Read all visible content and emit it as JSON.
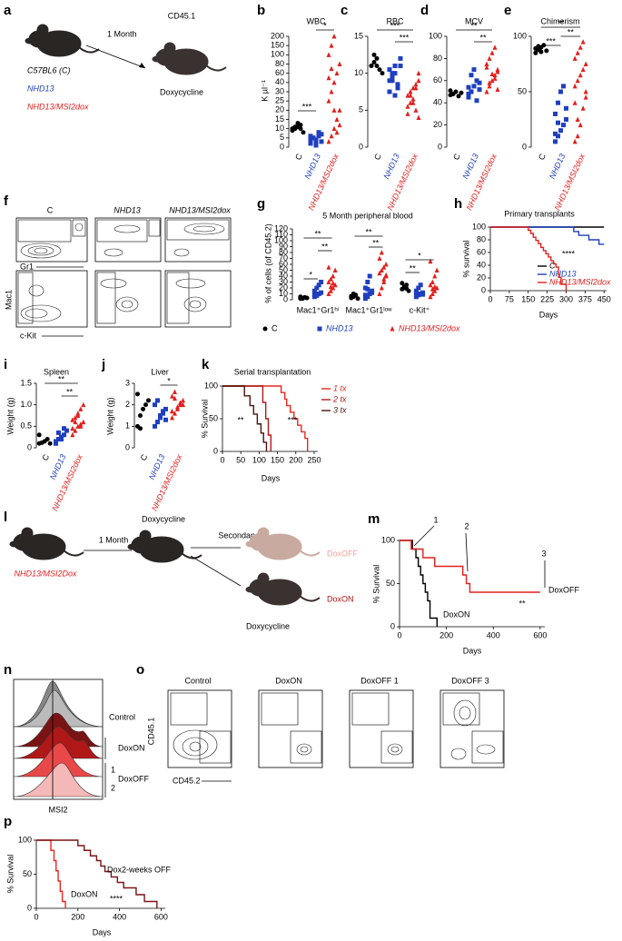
{
  "figure": {
    "a": {
      "label": "a",
      "interval": "1 Month",
      "recipient": "CD45.1",
      "strains": [
        "C57BL6 (C)",
        "NHD13",
        "NHD13/MSI2dox"
      ],
      "treatment": "Doxycycline"
    },
    "f": {
      "label": "f",
      "columns": [
        "C",
        "NHD13",
        "NHD13/MSI2dox"
      ],
      "axes": [
        "Gr1",
        "Mac1",
        "c-Kit"
      ]
    },
    "l": {
      "label": "l",
      "strain": "NHD13/MSI2Dox",
      "interval": "1 Month",
      "treatment": "Doxycycline",
      "step": "Secondary",
      "arms": [
        "DoxOFF",
        "DoxON"
      ],
      "arm_treatment": "Doxycycline"
    },
    "n": {
      "label": "n",
      "rows": [
        "Control",
        "DoxON",
        "DoxOFF"
      ],
      "replicates": [
        "1",
        "2"
      ],
      "xlabel": "MSI2"
    },
    "o": {
      "label": "o",
      "panels": [
        "Control",
        "DoxON",
        "DoxOFF 1",
        "DoxOFF 3"
      ],
      "ylabel": "CD45.1",
      "xlabel": "CD45.2"
    }
  },
  "chart_data": [
    {
      "type": "dot",
      "label": "b",
      "title": "WBC",
      "ylabel": "K µl⁻¹",
      "y_scale": "tick-spaced",
      "categories": [
        "C",
        "NHD13",
        "NHD13/MSI2dox"
      ],
      "colors": [
        "#000000",
        "#1f3fbf",
        "#e0201e"
      ],
      "markers": [
        "circle",
        "square",
        "triangle"
      ],
      "values": [
        [
          9,
          10,
          11,
          12,
          8,
          10,
          11,
          13,
          10
        ],
        [
          4,
          5,
          3,
          6,
          7,
          2,
          5,
          4,
          8,
          3,
          6,
          5,
          1
        ],
        [
          3,
          6,
          10,
          15,
          20,
          25,
          30,
          40,
          60,
          80,
          100,
          150,
          200,
          8,
          12,
          50,
          70,
          20
        ]
      ],
      "ylim": [
        0,
        200
      ],
      "yticks": [
        0,
        5,
        10,
        15,
        20,
        25,
        30,
        40,
        60,
        80,
        100,
        150,
        200
      ],
      "annotations": [
        "***",
        "*"
      ]
    },
    {
      "type": "dot",
      "label": "c",
      "title": "RBC",
      "categories": [
        "C",
        "NHD13",
        "NHD13/MSI2dox"
      ],
      "colors": [
        "#000000",
        "#1f3fbf",
        "#e0201e"
      ],
      "markers": [
        "circle",
        "square",
        "triangle"
      ],
      "values": [
        [
          11,
          11.5,
          12,
          10.5,
          10,
          11,
          12.5,
          11
        ],
        [
          9,
          10,
          11,
          8,
          12,
          7.5,
          9.5,
          10,
          8.5,
          11,
          10.5,
          9,
          7
        ],
        [
          7,
          6,
          8,
          5,
          9,
          4.5,
          7.5,
          6.5,
          8.5,
          10,
          5.5,
          7,
          6,
          8,
          4
        ]
      ],
      "ylim": [
        0,
        15
      ],
      "yticks": [
        0,
        5,
        10,
        15
      ],
      "annotations": [
        "***",
        "***"
      ]
    },
    {
      "type": "dot",
      "label": "d",
      "title": "MCV",
      "categories": [
        "C",
        "NHD13",
        "NHD13/MSI2dox"
      ],
      "colors": [
        "#000000",
        "#1f3fbf",
        "#e0201e"
      ],
      "markers": [
        "circle",
        "square",
        "triangle"
      ],
      "values": [
        [
          47,
          48,
          50,
          46,
          49,
          51,
          48
        ],
        [
          45,
          50,
          55,
          60,
          52,
          48,
          65,
          70,
          42,
          58,
          54
        ],
        [
          50,
          55,
          60,
          65,
          70,
          75,
          80,
          85,
          62,
          68,
          72,
          58,
          66,
          90,
          52
        ]
      ],
      "ylim": [
        0,
        100
      ],
      "yticks": [
        0,
        20,
        40,
        60,
        80,
        100
      ],
      "annotations": [
        "**",
        "**"
      ]
    },
    {
      "type": "dot",
      "label": "e",
      "title": "Chimerism",
      "categories": [
        "C",
        "NHD13",
        "NHD13/MSI2dox"
      ],
      "colors": [
        "#000000",
        "#1f3fbf",
        "#e0201e"
      ],
      "markers": [
        "circle",
        "square",
        "triangle"
      ],
      "values": [
        [
          85,
          88,
          90,
          92,
          87,
          89,
          91,
          86
        ],
        [
          5,
          10,
          15,
          20,
          25,
          30,
          40,
          50,
          55,
          35,
          12,
          22
        ],
        [
          5,
          10,
          20,
          35,
          45,
          55,
          60,
          65,
          70,
          75,
          80,
          85,
          90,
          95,
          50,
          40,
          25
        ]
      ],
      "ylim": [
        0,
        100
      ],
      "yticks": [
        0,
        50,
        100
      ],
      "annotations": [
        "**",
        "**",
        "***"
      ]
    },
    {
      "type": "grouped-dot",
      "label": "g",
      "title": "5 Month peripheral blood",
      "ylabel": "% of cells (of CD45.2)",
      "groups": [
        "Mac1⁺Gr1ʰⁱ",
        "Mac1⁺Gr1ˡᵒʷ",
        "c-Kit⁺"
      ],
      "series": [
        {
          "name": "C",
          "color": "#000000",
          "marker": "circle",
          "values": [
            [
              2,
              3,
              4,
              3,
              5,
              2
            ],
            [
              3,
              5,
              8,
              2,
              6,
              10
            ],
            [
              18,
              20,
              25,
              15,
              28,
              22,
              19
            ]
          ]
        },
        {
          "name": "NHD13",
          "color": "#1f3fbf",
          "marker": "square",
          "values": [
            [
              5,
              8,
              10,
              12,
              15,
              20,
              25,
              30,
              10,
              7
            ],
            [
              2,
              5,
              10,
              15,
              20,
              30,
              40,
              12,
              8,
              18
            ],
            [
              5,
              8,
              10,
              12,
              15,
              20,
              25,
              9,
              11
            ]
          ]
        },
        {
          "name": "NHD13/MSI2dox",
          "color": "#e0201e",
          "marker": "triangle",
          "values": [
            [
              10,
              15,
              20,
              25,
              30,
              35,
              40,
              50,
              55,
              22,
              28
            ],
            [
              10,
              20,
              30,
              40,
              45,
              50,
              55,
              60,
              70,
              80,
              35,
              42
            ],
            [
              5,
              10,
              15,
              20,
              25,
              30,
              40,
              50,
              65,
              18,
              22
            ]
          ]
        }
      ],
      "ylim": [
        0,
        120
      ],
      "yticks": [
        0,
        10,
        20,
        30,
        40,
        50,
        60,
        70,
        80,
        90,
        100,
        110,
        120
      ],
      "annotations": [
        "*",
        "**",
        "**",
        "**",
        "**",
        "**",
        "*"
      ]
    },
    {
      "type": "survival",
      "label": "h",
      "title": "Primary transplants",
      "ylabel": "% survival",
      "xlabel": "Days",
      "legend": true,
      "series": [
        {
          "name": "C",
          "color": "#000000",
          "x": [
            0,
            450
          ],
          "values": [
            100,
            100
          ]
        },
        {
          "name": "NHD13",
          "color": "#1f3fbf",
          "x": [
            0,
            330,
            350,
            390,
            410,
            430,
            450
          ],
          "values": [
            100,
            93,
            87,
            80,
            80,
            73,
            73
          ]
        },
        {
          "name": "NHD13/MSI2dox",
          "color": "#e0201e",
          "x": [
            0,
            150,
            160,
            170,
            180,
            190,
            200,
            210,
            220,
            230,
            240,
            250,
            260,
            270,
            280,
            300
          ],
          "values": [
            100,
            95,
            90,
            84,
            79,
            74,
            68,
            63,
            58,
            53,
            47,
            42,
            37,
            21,
            10,
            0
          ]
        }
      ],
      "xlim": [
        0,
        460
      ],
      "xticks": [
        0,
        75,
        150,
        225,
        300,
        375,
        450
      ],
      "ylim": [
        0,
        100
      ],
      "yticks": [
        0,
        20,
        40,
        60,
        80,
        100
      ],
      "annotations": [
        "****"
      ]
    },
    {
      "type": "dot",
      "label": "i",
      "title": "Spleen",
      "ylabel": "Weight (g)",
      "categories": [
        "C",
        "NHD13",
        "NHD13/MSI2dox"
      ],
      "colors": [
        "#000000",
        "#1f3fbf",
        "#e0201e"
      ],
      "markers": [
        "circle",
        "square",
        "triangle"
      ],
      "values": [
        [
          0.1,
          0.12,
          0.15,
          0.2,
          0.1,
          0.3
        ],
        [
          0.1,
          0.2,
          0.25,
          0.3,
          0.4,
          0.15,
          0.35,
          0.2,
          0.45
        ],
        [
          0.3,
          0.4,
          0.5,
          0.55,
          0.6,
          0.65,
          0.7,
          0.8,
          0.9,
          1.0,
          0.45,
          0.6,
          0.75,
          0.5
        ]
      ],
      "ylim": [
        0,
        1.5
      ],
      "yticks": [
        0,
        0.5,
        {
          "value": 1,
          "label": "1.0"
        },
        1.5
      ],
      "annotations": [
        "**",
        "**"
      ]
    },
    {
      "type": "dot",
      "label": "j",
      "title": "Liver",
      "ylabel": "Weight (g)",
      "categories": [
        "C",
        "NHD13",
        "NHD13/MSI2dox"
      ],
      "colors": [
        "#000000",
        "#1f3fbf",
        "#e0201e"
      ],
      "markers": [
        "circle",
        "square",
        "triangle"
      ],
      "values": [
        [
          1.0,
          1.5,
          1.8,
          2.0,
          2.2,
          2.5,
          0.9
        ],
        [
          1.0,
          1.2,
          1.4,
          1.6,
          1.8,
          2.0,
          2.2,
          1.5,
          1.7,
          1.3
        ],
        [
          1.4,
          1.6,
          1.8,
          2.0,
          2.2,
          2.4,
          2.6,
          1.9,
          2.1,
          2.0,
          1.7,
          2.3
        ]
      ],
      "ylim": [
        0,
        3
      ],
      "yticks": [
        0,
        1,
        2,
        3
      ],
      "annotations": [
        "*"
      ]
    },
    {
      "type": "survival",
      "label": "k",
      "title": "Serial transplantation",
      "ylabel": "% Survival",
      "xlabel": "Days",
      "legend": true,
      "series": [
        {
          "name": "1 tx",
          "color": "#e8281e",
          "x": [
            0,
            160,
            170,
            175,
            185,
            195,
            205,
            215,
            225,
            232
          ],
          "values": [
            100,
            90,
            80,
            70,
            60,
            50,
            40,
            30,
            20,
            0
          ]
        },
        {
          "name": "2 tx",
          "color": "#b01818",
          "x": [
            0,
            110,
            118,
            125,
            132
          ],
          "values": [
            100,
            75,
            50,
            25,
            0
          ]
        },
        {
          "name": "3 tx",
          "color": "#4a1410",
          "x": [
            0,
            60,
            75,
            85,
            95,
            105,
            112,
            120
          ],
          "values": [
            100,
            85,
            70,
            57,
            42,
            28,
            14,
            0
          ]
        }
      ],
      "xlim": [
        0,
        260
      ],
      "xticks": [
        0,
        50,
        100,
        150,
        200,
        250
      ],
      "ylim": [
        0,
        100
      ],
      "yticks": [
        0,
        50,
        100
      ],
      "annotations": [
        "**",
        "***"
      ]
    },
    {
      "type": "survival",
      "label": "m",
      "ylabel": "% Survival",
      "xlabel": "Days",
      "legend": false,
      "series": [
        {
          "name": "DoxON",
          "color": "#000000",
          "x": [
            0,
            55,
            70,
            80,
            90,
            100,
            110,
            120,
            130,
            160
          ],
          "values": [
            100,
            90,
            80,
            70,
            60,
            50,
            40,
            30,
            10,
            0
          ]
        },
        {
          "name": "DoxOFF",
          "color": "#e0201e",
          "x": [
            0,
            50,
            100,
            150,
            270,
            285,
            300,
            600
          ],
          "values": [
            100,
            90,
            80,
            70,
            60,
            50,
            40,
            40
          ]
        }
      ],
      "xlim": [
        0,
        620
      ],
      "xticks": [
        0,
        200,
        400,
        600
      ],
      "ylim": [
        0,
        100
      ],
      "yticks": [
        0,
        50,
        100
      ],
      "annotations": [
        "1",
        "2",
        "3",
        "**"
      ]
    },
    {
      "type": "survival",
      "label": "p",
      "ylabel": "% Survival",
      "xlabel": "Days",
      "legend": false,
      "series": [
        {
          "name": "DoxON",
          "color": "#e8281e",
          "x": [
            0,
            70,
            85,
            95,
            105,
            115,
            125,
            140
          ],
          "values": [
            100,
            85,
            70,
            55,
            40,
            25,
            10,
            0
          ]
        },
        {
          "name": "Dox2-weeks OFF",
          "color": "#7a1414",
          "x": [
            0,
            200,
            230,
            260,
            290,
            310,
            330,
            360,
            390,
            420,
            480,
            520,
            580
          ],
          "values": [
            100,
            92,
            85,
            77,
            70,
            62,
            54,
            46,
            38,
            30,
            20,
            10,
            0
          ]
        }
      ],
      "xlim": [
        0,
        620
      ],
      "xticks": [
        0,
        200,
        400,
        600
      ],
      "ylim": [
        0,
        100
      ],
      "yticks": [
        0,
        50,
        100
      ],
      "annotations": [
        "****"
      ]
    }
  ]
}
